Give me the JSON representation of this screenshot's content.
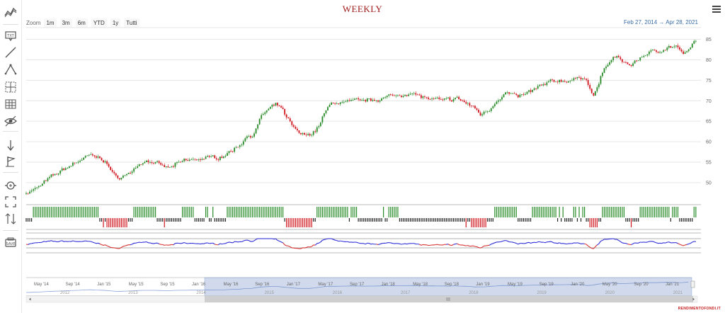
{
  "header": {
    "title": "WEEKLY"
  },
  "zoom": {
    "label": "Zoom",
    "buttons": [
      "1m",
      "3m",
      "6m",
      "YTD",
      "1y",
      "Tutti"
    ]
  },
  "range": {
    "from": "Feb 27, 2014",
    "arrow": "→",
    "to": "Apr 28, 2021"
  },
  "brand": "RENDIMENTOFONDI.IT",
  "toolbar": {
    "icons": [
      "indicators-icon",
      "annotation-label-icon",
      "line-tool-icon",
      "crooked-line-icon",
      "measure-icon",
      "table-grid-icon",
      "hide-eye-icon",
      "vertical-arrow-icon",
      "flag-icon",
      "zoom-change-icon",
      "fullscreen-icon",
      "current-price-icon",
      "save-chart-icon"
    ]
  },
  "chart_data": {
    "type": "candlestick",
    "title": "WEEKLY",
    "y_axis": {
      "ticks": [
        50,
        55,
        60,
        65,
        70,
        75,
        80,
        85
      ],
      "range": [
        46,
        87
      ],
      "side": "right"
    },
    "price_anchors": [
      [
        "2014-02-27",
        47.5
      ],
      [
        "2014-04-01",
        48.5
      ],
      [
        "2014-06-01",
        51.5
      ],
      [
        "2014-09-01",
        55.0
      ],
      [
        "2014-11-01",
        56.8
      ],
      [
        "2015-01-01",
        55.2
      ],
      [
        "2015-02-01",
        51.0
      ],
      [
        "2015-04-01",
        52.3
      ],
      [
        "2015-06-01",
        55.5
      ],
      [
        "2015-09-01",
        53.5
      ],
      [
        "2015-11-01",
        55.5
      ],
      [
        "2016-02-01",
        56.0
      ],
      [
        "2016-04-01",
        56.5
      ],
      [
        "2016-06-01",
        59.0
      ],
      [
        "2016-07-01",
        61.5
      ],
      [
        "2016-08-01",
        62.0
      ],
      [
        "2016-09-01",
        67.0
      ],
      [
        "2016-11-01",
        69.2
      ],
      [
        "2017-01-01",
        63.0
      ],
      [
        "2017-02-15",
        61.3
      ],
      [
        "2017-04-01",
        63.0
      ],
      [
        "2017-05-01",
        67.5
      ],
      [
        "2017-06-01",
        69.5
      ],
      [
        "2017-09-01",
        70.0
      ],
      [
        "2017-12-01",
        70.5
      ],
      [
        "2018-04-01",
        72.0
      ],
      [
        "2018-07-01",
        70.0
      ],
      [
        "2018-10-01",
        70.5
      ],
      [
        "2018-12-01",
        68.5
      ],
      [
        "2019-01-01",
        66.5
      ],
      [
        "2019-02-01",
        68.0
      ],
      [
        "2019-04-01",
        72.0
      ],
      [
        "2019-06-01",
        71.0
      ],
      [
        "2019-08-01",
        73.0
      ],
      [
        "2019-10-01",
        74.8
      ],
      [
        "2020-01-01",
        75.0
      ],
      [
        "2020-02-15",
        76.0
      ],
      [
        "2020-03-15",
        70.0
      ],
      [
        "2020-04-15",
        77.0
      ],
      [
        "2020-06-01",
        81.0
      ],
      [
        "2020-08-01",
        78.5
      ],
      [
        "2020-10-01",
        81.5
      ],
      [
        "2020-12-01",
        82.5
      ],
      [
        "2021-02-01",
        83.5
      ],
      [
        "2021-03-01",
        80.5
      ],
      [
        "2021-04-28",
        86.0
      ]
    ],
    "navigator": {
      "month_labels": [
        "May '14",
        "Sep '14",
        "Jan '15",
        "May '15",
        "Sep '15",
        "Jan '16",
        "May '16",
        "Sep '16",
        "Jan '17",
        "May '17",
        "Sep '17",
        "Jan '18",
        "May '18",
        "Sep '18",
        "Jan '19",
        "May '19",
        "Sep '19",
        "Jan '20",
        "May '20",
        "Sep '20",
        "Jan '21"
      ],
      "year_labels": [
        "2012",
        "2013",
        "2014",
        "2015",
        "2016",
        "2017",
        "2018",
        "2019",
        "2020",
        "2021"
      ],
      "selection_start": "2016-01"
    },
    "colors": {
      "up": "#2a8c2a",
      "down": "#d0161e",
      "neutral": "#222222",
      "osc_up": "#2b2bd6",
      "osc_down": "#d63030",
      "grid": "#e6e6e6",
      "navigator_mask": "rgba(102,133,194,0.3)"
    }
  }
}
